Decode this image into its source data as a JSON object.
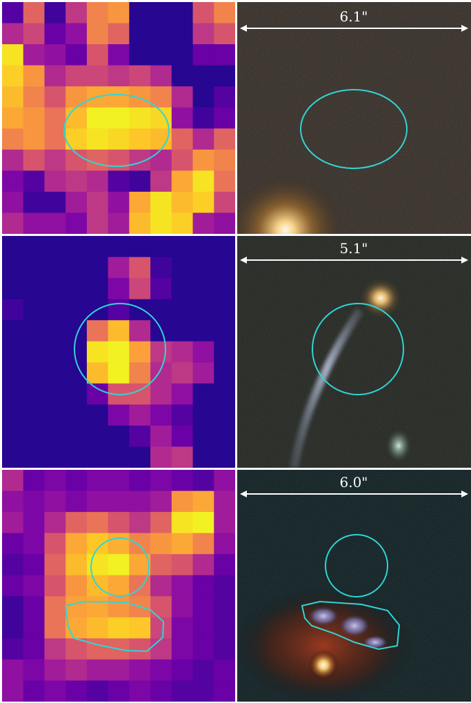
{
  "rows": [
    {
      "left": {
        "type": "heatmap",
        "grid": [
          [
            0.15,
            0.6,
            0.1,
            0.45,
            0.7,
            0.75,
            0.05,
            0.05,
            0.05,
            0.55,
            0.7
          ],
          [
            0.4,
            0.5,
            0.2,
            0.3,
            0.7,
            0.6,
            0.05,
            0.05,
            0.05,
            0.45,
            0.55
          ],
          [
            0.95,
            0.35,
            0.3,
            0.2,
            0.55,
            0.25,
            0.05,
            0.05,
            0.05,
            0.2,
            0.2
          ],
          [
            0.9,
            0.75,
            0.4,
            0.5,
            0.5,
            0.45,
            0.5,
            0.4,
            0.05,
            0.05,
            0.05
          ],
          [
            0.85,
            0.7,
            0.55,
            0.75,
            0.8,
            0.8,
            0.75,
            0.7,
            0.4,
            0.05,
            0.15
          ],
          [
            0.8,
            0.75,
            0.65,
            0.85,
            0.98,
            0.98,
            0.95,
            0.92,
            0.3,
            0.1,
            0.2
          ],
          [
            0.7,
            0.75,
            0.65,
            0.9,
            0.95,
            0.92,
            0.88,
            0.85,
            0.6,
            0.4,
            0.6
          ],
          [
            0.4,
            0.55,
            0.45,
            0.55,
            0.6,
            0.55,
            0.45,
            0.4,
            0.55,
            0.75,
            0.7
          ],
          [
            0.25,
            0.15,
            0.4,
            0.45,
            0.4,
            0.15,
            0.1,
            0.45,
            0.8,
            0.95,
            0.65
          ],
          [
            0.3,
            0.1,
            0.1,
            0.35,
            0.45,
            0.3,
            0.8,
            0.95,
            0.85,
            0.9,
            0.5
          ],
          [
            0.4,
            0.3,
            0.3,
            0.25,
            0.45,
            0.35,
            0.85,
            0.95,
            0.9,
            0.35,
            0.3
          ]
        ],
        "aperture": "ellipse"
      },
      "right": {
        "scale_label": "6.1\""
      }
    },
    {
      "left": {
        "type": "heatmap",
        "grid": [
          [
            0.05,
            0.05,
            0.05,
            0.05,
            0.05,
            0.05,
            0.05,
            0.05,
            0.05,
            0.05,
            0.05
          ],
          [
            0.05,
            0.05,
            0.05,
            0.05,
            0.05,
            0.35,
            0.55,
            0.1,
            0.05,
            0.05,
            0.05
          ],
          [
            0.05,
            0.05,
            0.05,
            0.05,
            0.05,
            0.25,
            0.5,
            0.15,
            0.05,
            0.05,
            0.05
          ],
          [
            0.1,
            0.05,
            0.05,
            0.05,
            0.05,
            0.15,
            0.05,
            0.05,
            0.05,
            0.05,
            0.05
          ],
          [
            0.05,
            0.05,
            0.05,
            0.05,
            0.65,
            0.85,
            0.4,
            0.05,
            0.05,
            0.05,
            0.05
          ],
          [
            0.05,
            0.05,
            0.05,
            0.05,
            0.95,
            0.98,
            0.78,
            0.45,
            0.4,
            0.3,
            0.05
          ],
          [
            0.05,
            0.05,
            0.05,
            0.05,
            0.85,
            0.98,
            0.7,
            0.4,
            0.45,
            0.35,
            0.05
          ],
          [
            0.05,
            0.05,
            0.05,
            0.05,
            0.2,
            0.55,
            0.55,
            0.4,
            0.3,
            0.05,
            0.05
          ],
          [
            0.05,
            0.05,
            0.05,
            0.05,
            0.05,
            0.25,
            0.35,
            0.25,
            0.15,
            0.05,
            0.05
          ],
          [
            0.05,
            0.05,
            0.05,
            0.05,
            0.05,
            0.05,
            0.15,
            0.35,
            0.2,
            0.05,
            0.05
          ],
          [
            0.05,
            0.05,
            0.05,
            0.05,
            0.05,
            0.05,
            0.05,
            0.4,
            0.45,
            0.05,
            0.05
          ]
        ],
        "aperture": "circle"
      },
      "right": {
        "scale_label": "5.1\""
      }
    },
    {
      "left": {
        "type": "heatmap",
        "grid": [
          [
            0.4,
            0.2,
            0.25,
            0.2,
            0.25,
            0.25,
            0.2,
            0.25,
            0.2,
            0.15,
            0.3
          ],
          [
            0.3,
            0.25,
            0.3,
            0.25,
            0.3,
            0.3,
            0.3,
            0.35,
            0.75,
            0.8,
            0.35
          ],
          [
            0.35,
            0.25,
            0.4,
            0.6,
            0.65,
            0.55,
            0.45,
            0.6,
            0.95,
            0.98,
            0.35
          ],
          [
            0.2,
            0.25,
            0.55,
            0.8,
            0.88,
            0.82,
            0.7,
            0.75,
            0.8,
            0.7,
            0.3
          ],
          [
            0.15,
            0.2,
            0.6,
            0.85,
            0.95,
            0.98,
            0.8,
            0.6,
            0.55,
            0.4,
            0.2
          ],
          [
            0.2,
            0.25,
            0.55,
            0.75,
            0.85,
            0.8,
            0.65,
            0.4,
            0.3,
            0.2,
            0.15
          ],
          [
            0.1,
            0.2,
            0.65,
            0.78,
            0.8,
            0.75,
            0.7,
            0.55,
            0.3,
            0.2,
            0.15
          ],
          [
            0.1,
            0.2,
            0.65,
            0.8,
            0.85,
            0.9,
            0.88,
            0.5,
            0.25,
            0.2,
            0.15
          ],
          [
            0.15,
            0.2,
            0.45,
            0.55,
            0.6,
            0.6,
            0.55,
            0.45,
            0.25,
            0.2,
            0.15
          ],
          [
            0.3,
            0.25,
            0.35,
            0.4,
            0.35,
            0.35,
            0.3,
            0.25,
            0.2,
            0.15,
            0.2
          ],
          [
            0.3,
            0.2,
            0.25,
            0.2,
            0.15,
            0.2,
            0.25,
            0.2,
            0.15,
            0.15,
            0.2
          ]
        ],
        "aperture": "circle-plus-polygon"
      },
      "right": {
        "scale_label": "6.0\""
      }
    }
  ],
  "colors": {
    "aperture": "#2fd6d6",
    "scale_bar": "#ffffff",
    "separator": "#ffffff",
    "colormap": [
      "#0d0887",
      "#46039f",
      "#7201a8",
      "#9c179e",
      "#bd3786",
      "#d8576b",
      "#ed7953",
      "#fb9f3a",
      "#fdca26",
      "#f0f921"
    ]
  }
}
